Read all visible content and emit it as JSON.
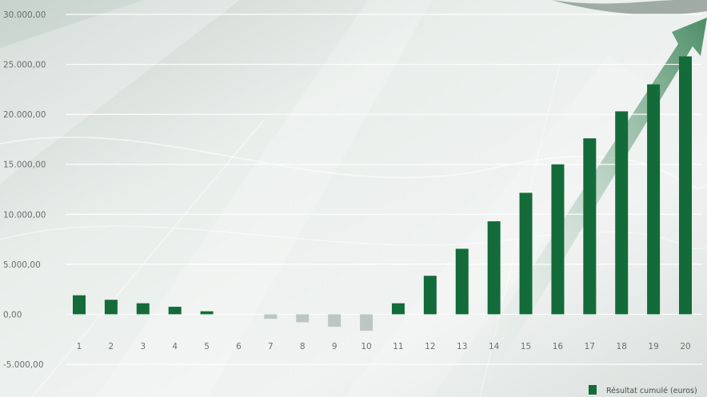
{
  "chart_data": {
    "type": "bar",
    "categories": [
      "1",
      "2",
      "3",
      "4",
      "5",
      "6",
      "7",
      "8",
      "9",
      "10",
      "11",
      "12",
      "13",
      "14",
      "15",
      "16",
      "17",
      "18",
      "19",
      "20"
    ],
    "series": [
      {
        "name": "Résultat cumulé (euros)",
        "values": [
          1900,
          1450,
          1100,
          750,
          300,
          0,
          -450,
          -800,
          -1250,
          -1650,
          1100,
          3850,
          6550,
          9300,
          12150,
          15000,
          17600,
          20300,
          23000,
          25800
        ]
      }
    ],
    "y_ticks": [
      -5000,
      0,
      5000,
      10000,
      15000,
      20000,
      25000,
      30000
    ],
    "y_tick_labels": [
      "-5.000,00",
      "0,00",
      "5.000,00",
      "10.000,00",
      "15.000,00",
      "20.000,00",
      "25.000,00",
      "30.000,00"
    ],
    "ylim": [
      -5000,
      30000
    ],
    "grid": true,
    "legend_position": "bottom-right",
    "colors": {
      "positive": "#136b3a",
      "negative": "#b6c2bb",
      "grid": "#ffffff",
      "tick_text": "#6b706d"
    }
  }
}
